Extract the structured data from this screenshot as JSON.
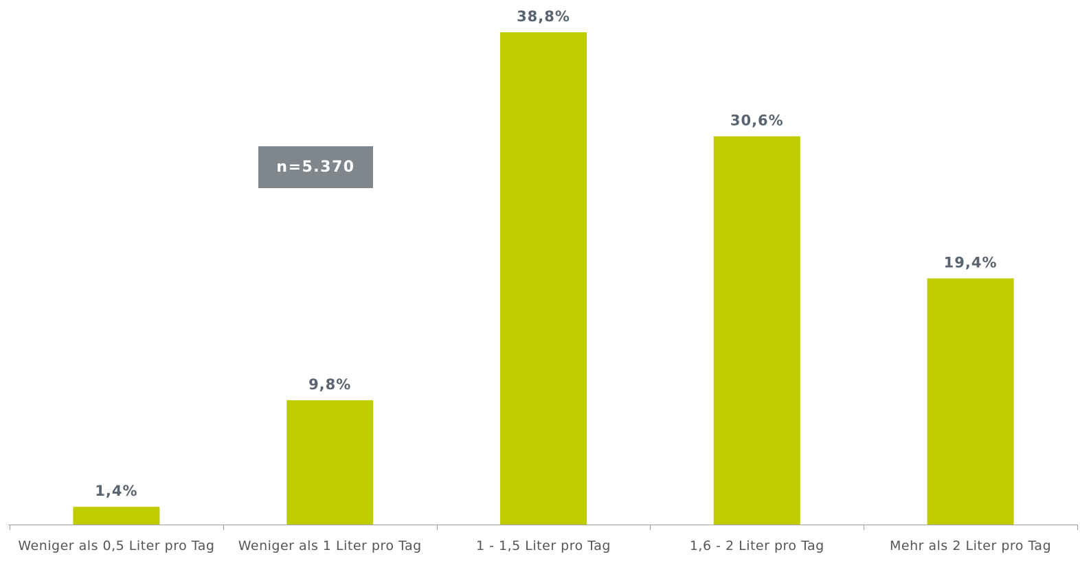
{
  "chart_data": {
    "type": "bar",
    "categories": [
      "Weniger als 0,5 Liter pro Tag",
      "Weniger als 1 Liter pro Tag",
      "1 - 1,5 Liter pro Tag",
      "1,6 - 2 Liter pro Tag",
      "Mehr als 2 Liter pro Tag"
    ],
    "values": [
      1.4,
      9.8,
      38.8,
      30.6,
      19.4
    ],
    "value_labels": [
      "1,4%",
      "9,8%",
      "38,8%",
      "30,6%",
      "19,4%"
    ],
    "color": "#bfcd00",
    "annotation": "n=5.370"
  }
}
